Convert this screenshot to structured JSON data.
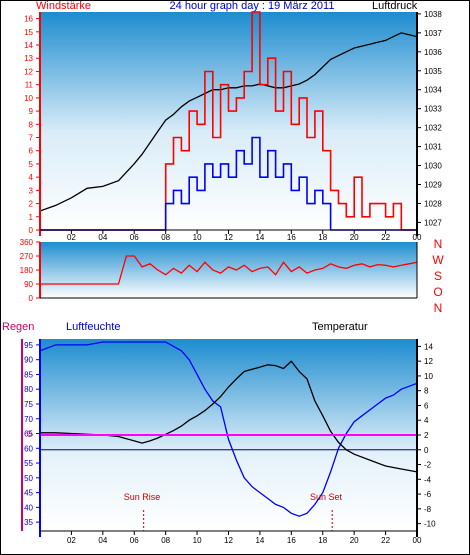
{
  "chart_data": [
    {
      "type": "line",
      "title": "24 hour graph day : 19 März 2011",
      "left_axis_label": "Windstärke",
      "right_axis_label": "Luftdruck",
      "x_ticks": [
        "02",
        "04",
        "06",
        "08",
        "10",
        "12",
        "14",
        "16",
        "18",
        "20",
        "22",
        "00"
      ],
      "left_ticks": [
        "0",
        "1",
        "2",
        "3",
        "4",
        "5",
        "6",
        "7",
        "8",
        "9",
        "10",
        "11",
        "12",
        "13",
        "14",
        "15",
        "16"
      ],
      "right_ticks": [
        "1027",
        "1028",
        "1029",
        "1030",
        "1031",
        "1032",
        "1033",
        "1034",
        "1035",
        "1036",
        "1037",
        "1038"
      ],
      "xlim": [
        0,
        24
      ],
      "ylim_left": [
        0,
        16.5
      ],
      "ylim_right": [
        1026.6,
        1038.1
      ],
      "colors": {
        "wind_gust": "#ff0000",
        "wind_avg": "#0000ff",
        "pressure": "#000000",
        "title": "#0000cc"
      },
      "series": [
        {
          "name": "Luftdruck",
          "axis": "right",
          "color": "#000000",
          "x": [
            0,
            1,
            2,
            3,
            4,
            5,
            6,
            6.5,
            7,
            7.5,
            8,
            8.5,
            9,
            9.5,
            10,
            10.5,
            11,
            11.5,
            12,
            12.5,
            13,
            13.5,
            14,
            14.5,
            15,
            15.5,
            16,
            16.5,
            17,
            17.5,
            18,
            18.5,
            19,
            19.5,
            20,
            20.5,
            21,
            21.5,
            22,
            22.5,
            23,
            23.5,
            24
          ],
          "y": [
            1027.6,
            1027.9,
            1028.3,
            1028.8,
            1028.9,
            1029.2,
            1030.1,
            1030.6,
            1031.2,
            1031.8,
            1032.4,
            1032.7,
            1033.1,
            1033.4,
            1033.6,
            1033.8,
            1034.0,
            1034.0,
            1034.1,
            1034.1,
            1034.2,
            1034.2,
            1034.3,
            1034.2,
            1034.1,
            1034.1,
            1034.2,
            1034.3,
            1034.5,
            1034.8,
            1035.2,
            1035.6,
            1035.8,
            1036.0,
            1036.2,
            1036.3,
            1036.4,
            1036.5,
            1036.6,
            1036.8,
            1037.0,
            1036.9,
            1036.8
          ]
        },
        {
          "name": "Böen",
          "axis": "left",
          "color": "#ff0000",
          "x": [
            0,
            6,
            8,
            8.5,
            9,
            9.5,
            10,
            10.5,
            11,
            11.5,
            12,
            12.5,
            13,
            13.5,
            14,
            14.5,
            15,
            15.5,
            16,
            16.5,
            17,
            17.5,
            18,
            18.5,
            19,
            19.5,
            20,
            20.5,
            21,
            21.5,
            22,
            22.5,
            23,
            24
          ],
          "y": [
            0,
            0,
            5,
            7,
            6,
            9,
            8,
            12,
            7,
            11,
            9,
            10,
            12,
            16.5,
            11,
            13,
            9,
            12,
            8,
            10,
            7,
            9,
            6,
            3,
            2,
            1,
            4,
            1,
            2,
            2,
            1,
            2,
            0,
            0
          ]
        },
        {
          "name": "Mittel",
          "axis": "left",
          "color": "#0000ff",
          "x": [
            0,
            7.8,
            8,
            8.5,
            9,
            9.5,
            10,
            10.5,
            11,
            11.5,
            12,
            12.5,
            13,
            13.5,
            14,
            14.5,
            15,
            15.5,
            16,
            16.5,
            17,
            17.5,
            18,
            18.5,
            24
          ],
          "y": [
            0,
            0,
            2,
            3,
            2,
            4,
            3,
            5,
            4,
            5,
            4,
            6,
            5,
            7,
            4,
            6,
            4,
            5,
            3,
            4,
            2,
            3,
            2,
            0,
            0
          ]
        }
      ]
    },
    {
      "type": "line",
      "title": "",
      "left_ticks": [
        "360",
        "270",
        "180",
        "90",
        "0"
      ],
      "right_labels": [
        "N",
        "W",
        "S",
        "O",
        "N"
      ],
      "xlim": [
        0,
        24
      ],
      "ylim": [
        0,
        360
      ],
      "series": [
        {
          "name": "Windrichtung",
          "color": "#ff0000",
          "x": [
            0,
            5,
            5.5,
            6,
            6.5,
            7,
            7.5,
            8,
            8.5,
            9,
            9.5,
            10,
            10.5,
            11,
            11.5,
            12,
            12.5,
            13,
            13.5,
            14,
            14.5,
            15,
            15.5,
            16,
            16.5,
            17,
            17.5,
            18,
            18.5,
            19,
            19.5,
            20,
            20.5,
            21,
            21.5,
            22,
            22.5,
            23,
            23.5,
            24
          ],
          "y": [
            90,
            90,
            270,
            270,
            200,
            220,
            180,
            150,
            190,
            160,
            210,
            170,
            230,
            180,
            160,
            200,
            180,
            210,
            170,
            190,
            200,
            150,
            230,
            170,
            200,
            160,
            180,
            190,
            220,
            200,
            190,
            210,
            220,
            200,
            215,
            210,
            200,
            210,
            220,
            230
          ]
        }
      ]
    },
    {
      "type": "line",
      "title": "",
      "rain_label": "Regen",
      "humidity_label": "Luftfeuchte",
      "temp_label": "Temperatur",
      "rain_tick": "0",
      "left_ticks": [
        "35",
        "40",
        "45",
        "50",
        "55",
        "60",
        "65",
        "70",
        "75",
        "80",
        "85",
        "90",
        "95"
      ],
      "right_ticks": [
        "14",
        "12",
        "10",
        "8",
        "6",
        "4",
        "2",
        "0",
        "-2",
        "-4",
        "-6",
        "-8",
        "-10"
      ],
      "x_ticks": [
        "02",
        "04",
        "06",
        "08",
        "10",
        "12",
        "14",
        "16",
        "18",
        "20",
        "22",
        "00"
      ],
      "xlim": [
        0,
        24
      ],
      "ylim_left": [
        32,
        97
      ],
      "ylim_right": [
        -11,
        15
      ],
      "annotations": [
        "Sun Rise",
        "Sun Set"
      ],
      "sun_rise_hour": 6.6,
      "sun_set_hour": 18.6,
      "colors": {
        "humidity": "#0000ff",
        "temperature": "#000000",
        "rain": "#ff00ff",
        "zero_line": "#000080",
        "annotations": "#cc0000"
      },
      "series": [
        {
          "name": "Luftfeuchte",
          "axis": "left",
          "color": "#0000ff",
          "x": [
            0,
            1,
            2,
            3,
            4,
            5,
            6,
            7,
            8,
            9,
            9.5,
            10,
            10.5,
            11,
            11.5,
            12,
            12.5,
            13,
            13.5,
            14,
            14.5,
            15,
            15.5,
            16,
            16.5,
            17,
            17.5,
            18,
            18.5,
            19,
            19.5,
            20,
            20.5,
            21,
            21.5,
            22,
            22.5,
            23,
            23.5,
            24
          ],
          "y": [
            93,
            95,
            95,
            95,
            96,
            96,
            96,
            96,
            96,
            93,
            90,
            85,
            80,
            76,
            74,
            63,
            56,
            50,
            47,
            45,
            43,
            41,
            40,
            38,
            37,
            38,
            41,
            45,
            52,
            60,
            65,
            69,
            71,
            73,
            75,
            77,
            78,
            80,
            81,
            82
          ]
        },
        {
          "name": "Temperatur",
          "axis": "right",
          "color": "#000000",
          "x": [
            0,
            1,
            2,
            3,
            4,
            5,
            6,
            6.5,
            7,
            7.5,
            8,
            8.5,
            9,
            9.5,
            10,
            10.5,
            11,
            11.5,
            12,
            12.5,
            13,
            13.5,
            14,
            14.5,
            15,
            15.5,
            16,
            16.5,
            17,
            17.5,
            18,
            18.5,
            19,
            19.5,
            20,
            21,
            22,
            23,
            24
          ],
          "y": [
            2.3,
            2.3,
            2.2,
            2.1,
            2.0,
            1.8,
            1.2,
            0.9,
            1.2,
            1.6,
            2.1,
            2.6,
            3.2,
            4.0,
            4.6,
            5.3,
            6.2,
            7.2,
            8.5,
            9.6,
            10.6,
            10.9,
            11.2,
            11.5,
            11.4,
            11.0,
            12.0,
            10.6,
            9.6,
            6.6,
            4.6,
            2.5,
            1.0,
            0.0,
            -0.6,
            -1.4,
            -2.2,
            -2.6,
            -3.0
          ]
        },
        {
          "name": "Regen",
          "axis": "rain",
          "color": "#ff00ff",
          "x": [
            0,
            24
          ],
          "y": [
            0,
            0
          ]
        }
      ]
    }
  ]
}
